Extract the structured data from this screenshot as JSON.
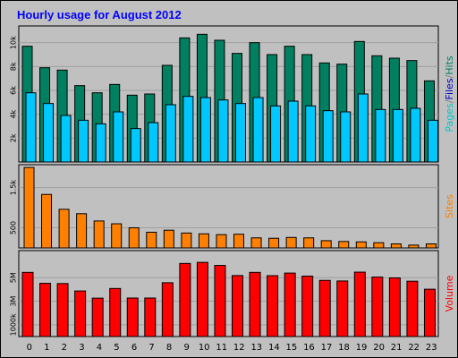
{
  "chart_data": {
    "title": "Hourly usage for August 2012",
    "type": "bar",
    "categories": [
      "0",
      "1",
      "2",
      "3",
      "4",
      "5",
      "6",
      "7",
      "8",
      "9",
      "10",
      "11",
      "12",
      "13",
      "14",
      "15",
      "16",
      "17",
      "18",
      "19",
      "20",
      "21",
      "22",
      "23"
    ],
    "panels": [
      {
        "side_label_parts": [
          {
            "text": "Pages",
            "color": "#00c8c8"
          },
          {
            "text": "/",
            "color": "#808080"
          },
          {
            "text": "Files",
            "color": "#0000c8"
          },
          {
            "text": "/",
            "color": "#808080"
          },
          {
            "text": "Hits",
            "color": "#008060"
          }
        ],
        "ylim": [
          0,
          11400
        ],
        "ticks": [
          {
            "label": "2k",
            "value": 2000
          },
          {
            "label": "4k",
            "value": 4000
          },
          {
            "label": "6k",
            "value": 6000
          },
          {
            "label": "8k",
            "value": 8000
          },
          {
            "label": "10k",
            "value": 10000
          }
        ],
        "series": [
          {
            "name": "Hits",
            "color": "#008060",
            "values": [
              9700,
              7900,
              7700,
              6400,
              5800,
              6500,
              5600,
              5700,
              8100,
              10400,
              10700,
              10200,
              9100,
              10000,
              9000,
              9700,
              9000,
              8300,
              8200,
              10100,
              8900,
              8700,
              8500,
              6800
            ]
          },
          {
            "name": "Pages",
            "color": "#00c8ff",
            "values": [
              5800,
              4900,
              3900,
              3500,
              3200,
              4200,
              2800,
              3300,
              4800,
              5500,
              5400,
              5200,
              4900,
              5400,
              4700,
              5100,
              4700,
              4300,
              4200,
              5700,
              4400,
              4400,
              4500,
              3500
            ]
          }
        ]
      },
      {
        "side_label_parts": [
          {
            "text": "Sites",
            "color": "#ff8000"
          }
        ],
        "ylim": [
          0,
          2070
        ],
        "ticks": [
          {
            "label": "500",
            "value": 500
          },
          {
            "label": "1.5k",
            "value": 1500
          }
        ],
        "series": [
          {
            "name": "Sites",
            "color": "#ff8000",
            "values": [
              2000,
              1330,
              960,
              850,
              670,
              600,
              500,
              390,
              440,
              370,
              350,
              330,
              340,
              250,
              240,
              260,
              250,
              180,
              160,
              150,
              130,
              100,
              70,
              100
            ]
          }
        ]
      },
      {
        "side_label_parts": [
          {
            "text": "Volume",
            "color": "#ff0000"
          }
        ],
        "ylim": [
          0,
          7300000
        ],
        "ticks": [
          {
            "label": "1000k",
            "value": 1000000
          },
          {
            "label": "3M",
            "value": 3000000
          },
          {
            "label": "5M",
            "value": 5000000
          }
        ],
        "series": [
          {
            "name": "Volume",
            "color": "#ff0000",
            "values": [
              5450000,
              4520000,
              4500000,
              3870000,
              3260000,
              4080000,
              3270000,
              3270000,
              4570000,
              6210000,
              6300000,
              6040000,
              5180000,
              5450000,
              5170000,
              5390000,
              5130000,
              4770000,
              4720000,
              5470000,
              5050000,
              4980000,
              4700000,
              4020000
            ]
          }
        ]
      }
    ]
  }
}
